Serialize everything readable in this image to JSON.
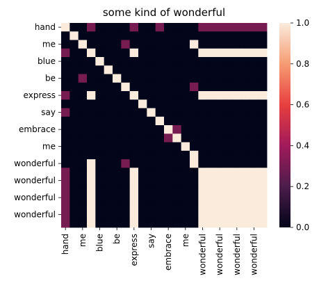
{
  "chart_data": {
    "type": "heatmap",
    "title": "some kind of wonderful",
    "xlabel": "",
    "ylabel": "",
    "tokens": [
      "hand",
      "",
      "me",
      "",
      "blue",
      "",
      "be",
      "",
      "express",
      "",
      "say",
      "",
      "embrace",
      "",
      "me",
      "",
      "wonderful",
      "",
      "wonderful",
      "",
      "wonderful",
      "",
      "wonderful",
      ""
    ],
    "x_tick_labels": [
      "hand",
      "me",
      "blue",
      "be",
      "express",
      "say",
      "embrace",
      "me",
      "wonderful",
      "wonderful",
      "wonderful",
      "wonderful"
    ],
    "y_tick_labels": [
      "hand",
      "me",
      "blue",
      "be",
      "express",
      "say",
      "embrace",
      "me",
      "wonderful",
      "wonderful",
      "wonderful",
      "wonderful"
    ],
    "values": [
      [
        1,
        0,
        0,
        0.3,
        0,
        0,
        0,
        0,
        0.3,
        0,
        0,
        0.3,
        0,
        0,
        0,
        0,
        0.3,
        0.3,
        0.3,
        0.3,
        0.3,
        0.3,
        0.3,
        0.3
      ],
      [
        0,
        1,
        0,
        0,
        0,
        0,
        0,
        0,
        0,
        0,
        0,
        0,
        0,
        0,
        0,
        0,
        0,
        0,
        0,
        0,
        0,
        0,
        0,
        0
      ],
      [
        0,
        0,
        1,
        0,
        0,
        0,
        0,
        0.3,
        0,
        0,
        0,
        0,
        0,
        0,
        0,
        1,
        0,
        0,
        0,
        0,
        0,
        0,
        0,
        0
      ],
      [
        0.3,
        0,
        0,
        1,
        0,
        0,
        0,
        0,
        1,
        0,
        0,
        0,
        0,
        0,
        0,
        0,
        1,
        1,
        1,
        1,
        1,
        1,
        1,
        1
      ],
      [
        0,
        0,
        0,
        0,
        1,
        0,
        0,
        0,
        0,
        0,
        0,
        0,
        0,
        0,
        0,
        0,
        0,
        0,
        0,
        0,
        0,
        0,
        0,
        0
      ],
      [
        0,
        0,
        0,
        0,
        0,
        1,
        0,
        0,
        0,
        0,
        0,
        0,
        0,
        0,
        0,
        0,
        0,
        0,
        0,
        0,
        0,
        0,
        0,
        0
      ],
      [
        0,
        0,
        0.3,
        0,
        0,
        0,
        1,
        0,
        0,
        0,
        0,
        0,
        0,
        0,
        0,
        0,
        0,
        0,
        0,
        0,
        0,
        0,
        0,
        0
      ],
      [
        0,
        0,
        0,
        0,
        0,
        0,
        0,
        1,
        0,
        0,
        0,
        0,
        0,
        0,
        0,
        0.3,
        0,
        0,
        0,
        0,
        0,
        0,
        0,
        0
      ],
      [
        0.3,
        0,
        0,
        1,
        0,
        0,
        0,
        0,
        1,
        0,
        0,
        0,
        0,
        0,
        0,
        0,
        1,
        1,
        1,
        1,
        1,
        1,
        1,
        1
      ],
      [
        0,
        0,
        0,
        0,
        0,
        0,
        0,
        0,
        0,
        1,
        0,
        0,
        0,
        0,
        0,
        0,
        0,
        0,
        0,
        0,
        0,
        0,
        0,
        0
      ],
      [
        0.3,
        0,
        0,
        0,
        0,
        0,
        0,
        0,
        0,
        0,
        1,
        0,
        0,
        0,
        0,
        0,
        0,
        0,
        0,
        0,
        0,
        0,
        0,
        0
      ],
      [
        0,
        0,
        0,
        0,
        0,
        0,
        0,
        0,
        0,
        0,
        0,
        1,
        0,
        0,
        0,
        0,
        0,
        0,
        0,
        0,
        0,
        0,
        0,
        0
      ],
      [
        0,
        0,
        0,
        0,
        0,
        0,
        0,
        0,
        0,
        0,
        0,
        0,
        1,
        0.3,
        0,
        0,
        0,
        0,
        0,
        0,
        0,
        0,
        0,
        0
      ],
      [
        0,
        0,
        0,
        0,
        0,
        0,
        0,
        0,
        0,
        0,
        0,
        0,
        0.3,
        1,
        0,
        0,
        0,
        0,
        0,
        0,
        0,
        0,
        0,
        0
      ],
      [
        0,
        0,
        0,
        0,
        0,
        0,
        0,
        0,
        0,
        0,
        0,
        0,
        0,
        0,
        1,
        0,
        0,
        0,
        0,
        0,
        0,
        0,
        0,
        0
      ],
      [
        0,
        0,
        0,
        0,
        0,
        0,
        0,
        0,
        0,
        0,
        0,
        0,
        0,
        0,
        0,
        1,
        0,
        0,
        0,
        0,
        0,
        0,
        0,
        0
      ],
      [
        0,
        0,
        0,
        1,
        0,
        0,
        0,
        0.3,
        0,
        0,
        0,
        0,
        0,
        0,
        0,
        1,
        0,
        0,
        0,
        0,
        0,
        0,
        0,
        0
      ],
      [
        0.3,
        0,
        0,
        1,
        0,
        0,
        0,
        0,
        1,
        0,
        0,
        0,
        0,
        0,
        0,
        0,
        1,
        1,
        1,
        1,
        1,
        1,
        1,
        1
      ],
      [
        0.3,
        0,
        0,
        1,
        0,
        0,
        0,
        0,
        1,
        0,
        0,
        0,
        0,
        0,
        0,
        0,
        1,
        1,
        1,
        1,
        1,
        1,
        1,
        1
      ],
      [
        0.3,
        0,
        0,
        1,
        0,
        0,
        0,
        0,
        1,
        0,
        0,
        0,
        0,
        0,
        0,
        0,
        1,
        1,
        1,
        1,
        1,
        1,
        1,
        1
      ],
      [
        0.3,
        0,
        0,
        1,
        0,
        0,
        0,
        0,
        1,
        0,
        0,
        0,
        0,
        0,
        0,
        0,
        1,
        1,
        1,
        1,
        1,
        1,
        1,
        1
      ],
      [
        0.3,
        0,
        0,
        1,
        0,
        0,
        0,
        0,
        1,
        0,
        0,
        0,
        0,
        0,
        0,
        0,
        1,
        1,
        1,
        1,
        1,
        1,
        1,
        1
      ],
      [
        0.3,
        0,
        0,
        1,
        0,
        0,
        0,
        0,
        1,
        0,
        0,
        0,
        0,
        0,
        0,
        0,
        1,
        1,
        1,
        1,
        1,
        1,
        1,
        1
      ],
      [
        0.3,
        0,
        0,
        1,
        0,
        0,
        0,
        0,
        1,
        0,
        0,
        0,
        0,
        0,
        0,
        0,
        1,
        1,
        1,
        1,
        1,
        1,
        1,
        1
      ]
    ],
    "vmin": 0,
    "vmax": 1,
    "colorbar": {
      "ticks": [
        0.0,
        0.2,
        0.4,
        0.6,
        0.8,
        1.0
      ],
      "tick_labels": [
        "0.0",
        "0.2",
        "0.4",
        "0.6",
        "0.8",
        "1.0"
      ]
    },
    "colormap": [
      "#03051a",
      "#4c1d4b",
      "#a11a5b",
      "#e83f3f",
      "#f69c73",
      "#faebdd"
    ],
    "grid": false,
    "legend": "colorbar-right"
  }
}
